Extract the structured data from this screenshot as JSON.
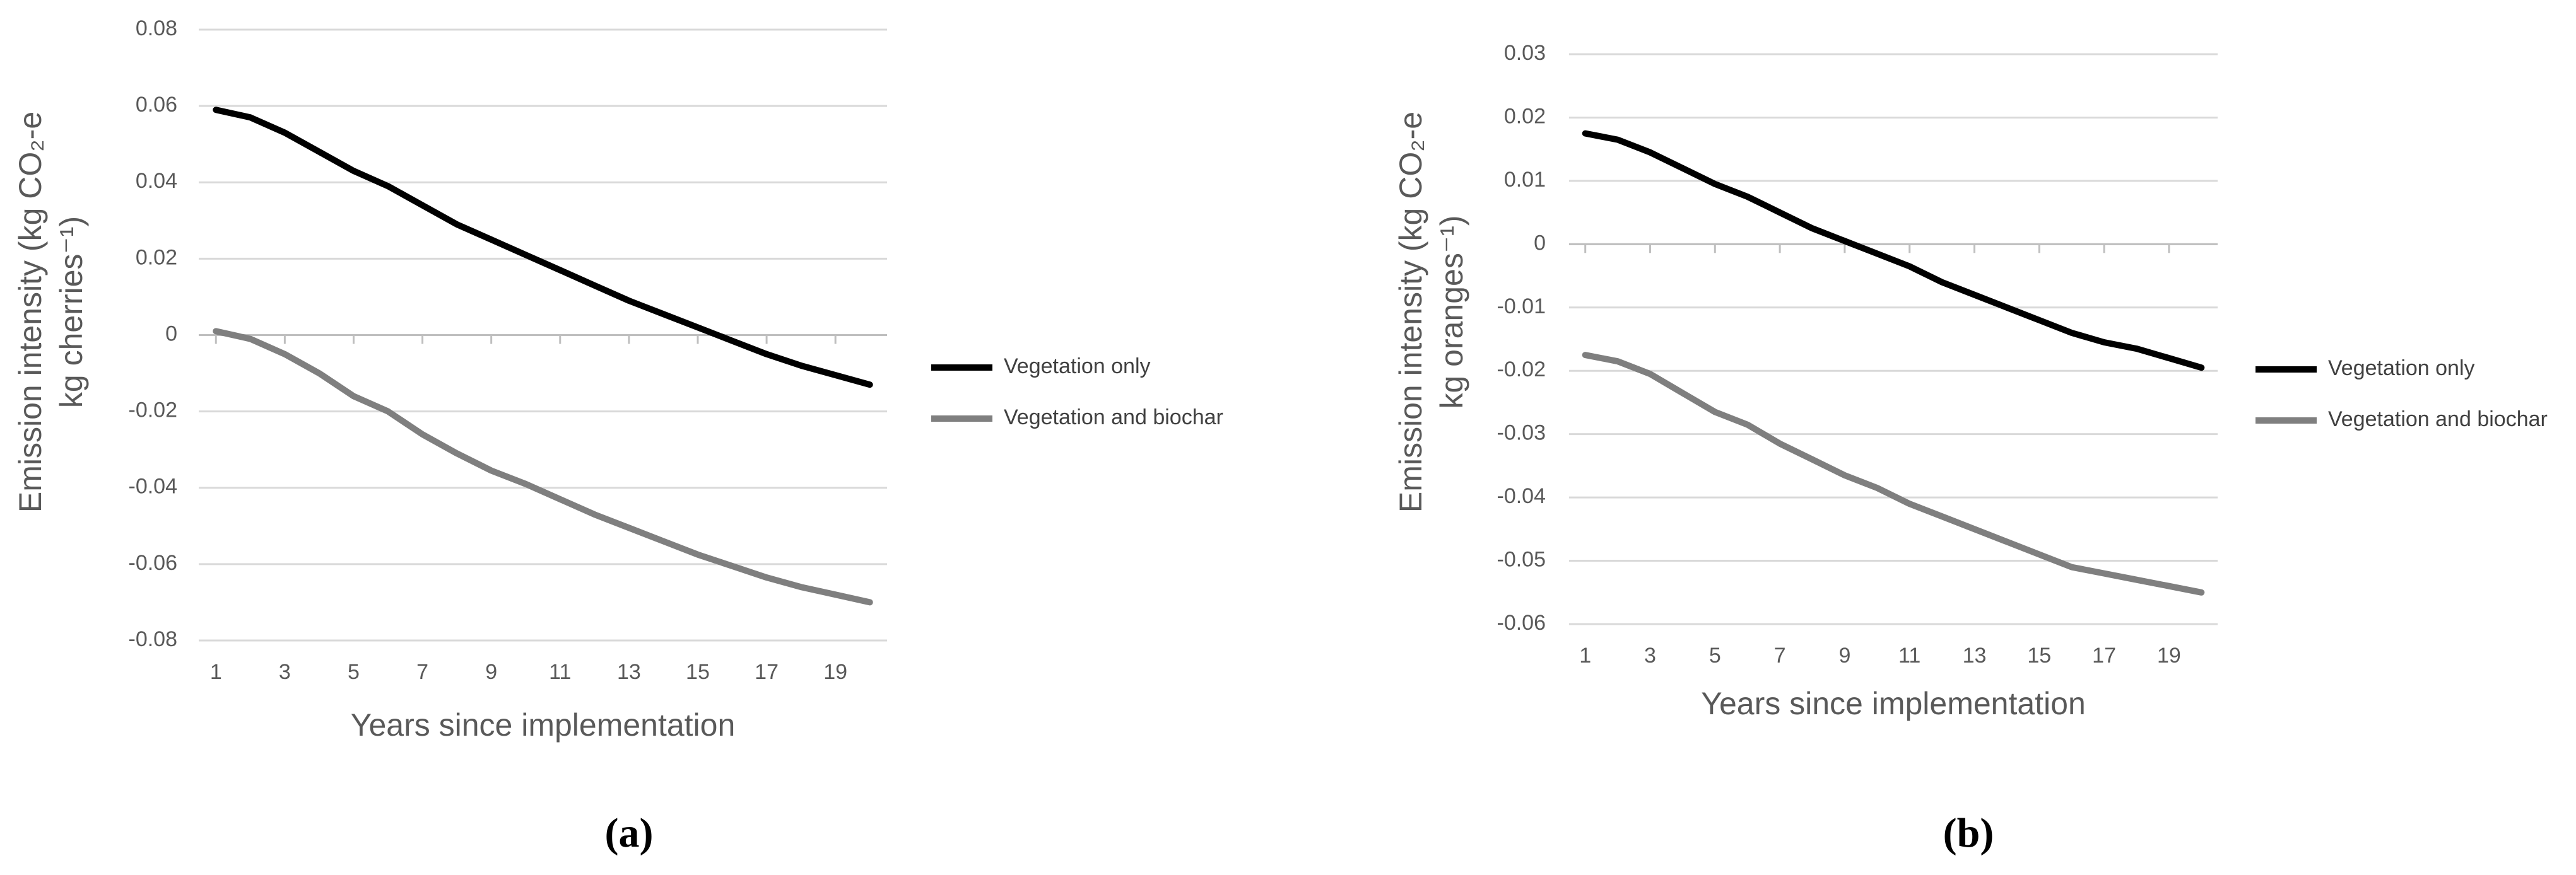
{
  "chart_data": [
    {
      "type": "line",
      "ylabel": [
        "Emission intensity (kg CO₂-e",
        "kg cherries⁻¹)"
      ],
      "xlabel": "Years since implementation",
      "panel_label": "(a)",
      "x": [
        1,
        2,
        3,
        4,
        5,
        6,
        7,
        8,
        9,
        10,
        11,
        12,
        13,
        14,
        15,
        16,
        17,
        18,
        19,
        20
      ],
      "xlim": [
        0.5,
        20.5
      ],
      "xticks": [
        1,
        3,
        5,
        7,
        9,
        11,
        13,
        15,
        17,
        19
      ],
      "ylim": [
        -0.08,
        0.08
      ],
      "yticks": [
        -0.08,
        -0.06,
        -0.04,
        -0.02,
        0,
        0.02,
        0.04,
        0.06,
        0.08
      ],
      "grid": true,
      "legend": "right",
      "series": [
        {
          "name": "Vegetation only",
          "color": "#000000",
          "values": [
            0.059,
            0.057,
            0.053,
            0.048,
            0.043,
            0.039,
            0.034,
            0.029,
            0.025,
            0.021,
            0.017,
            0.013,
            0.009,
            0.0055,
            0.002,
            -0.0015,
            -0.005,
            -0.008,
            -0.0105,
            -0.013
          ]
        },
        {
          "name": "Vegetation and biochar",
          "color": "#7f7f7f",
          "values": [
            0.001,
            -0.001,
            -0.005,
            -0.01,
            -0.016,
            -0.02,
            -0.026,
            -0.031,
            -0.0355,
            -0.039,
            -0.043,
            -0.047,
            -0.0505,
            -0.054,
            -0.0575,
            -0.0605,
            -0.0635,
            -0.066,
            -0.068,
            -0.07
          ]
        }
      ]
    },
    {
      "type": "line",
      "ylabel": [
        "Emission intensity (kg CO₂-e",
        "kg oranges⁻¹)"
      ],
      "xlabel": "Years since implementation",
      "panel_label": "(b)",
      "x": [
        1,
        2,
        3,
        4,
        5,
        6,
        7,
        8,
        9,
        10,
        11,
        12,
        13,
        14,
        15,
        16,
        17,
        18,
        19,
        20
      ],
      "xlim": [
        0.5,
        20.5
      ],
      "xticks": [
        1,
        3,
        5,
        7,
        9,
        11,
        13,
        15,
        17,
        19
      ],
      "ylim": [
        -0.06,
        0.03
      ],
      "yticks": [
        -0.06,
        -0.05,
        -0.04,
        -0.03,
        -0.02,
        -0.01,
        0,
        0.01,
        0.02,
        0.03
      ],
      "grid": true,
      "legend": "right",
      "series": [
        {
          "name": "Vegetation only",
          "color": "#000000",
          "values": [
            0.0175,
            0.0165,
            0.0145,
            0.012,
            0.0095,
            0.0075,
            0.005,
            0.0025,
            0.0005,
            -0.0015,
            -0.0035,
            -0.006,
            -0.008,
            -0.01,
            -0.012,
            -0.014,
            -0.0155,
            -0.0165,
            -0.018,
            -0.0195
          ]
        },
        {
          "name": "Vegetation and biochar",
          "color": "#7f7f7f",
          "values": [
            -0.0175,
            -0.0185,
            -0.0205,
            -0.0235,
            -0.0265,
            -0.0285,
            -0.0315,
            -0.034,
            -0.0365,
            -0.0385,
            -0.041,
            -0.043,
            -0.045,
            -0.047,
            -0.049,
            -0.051,
            -0.052,
            -0.053,
            -0.054,
            -0.055
          ]
        }
      ]
    }
  ]
}
